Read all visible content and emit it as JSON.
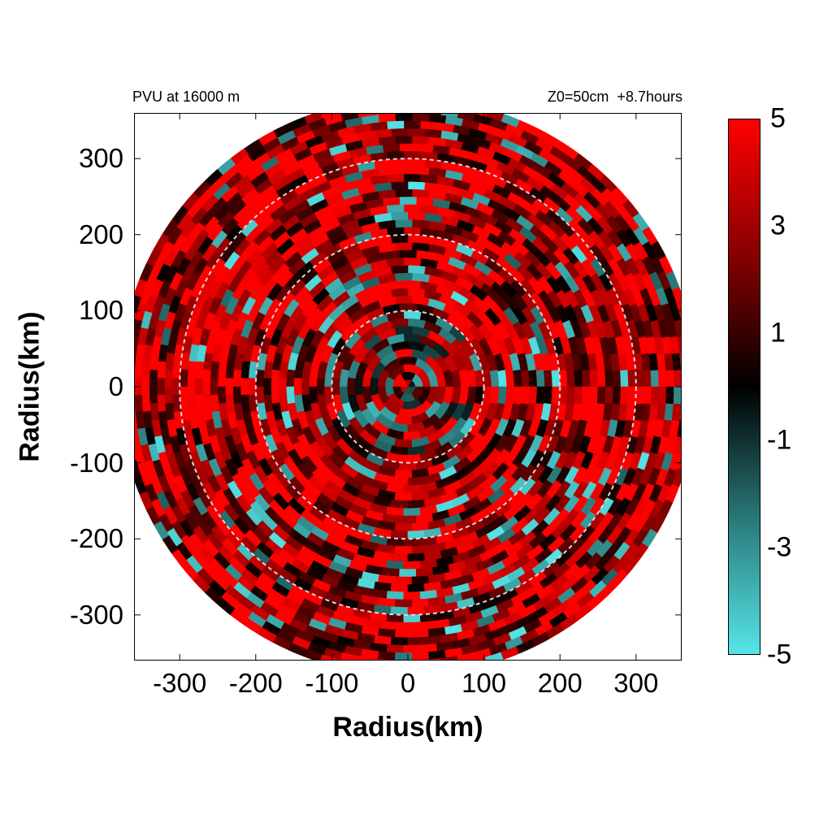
{
  "header": {
    "left_title": "PVU at 16000 m",
    "right_title": "Z0=50cm  +8.7hours"
  },
  "colors": {
    "high": "#ff0000",
    "mid_high": "#7a0000",
    "zero": "#000000",
    "mid_low": "#2a7a7a",
    "low": "#55e5e8",
    "ring": "#d9d9d9"
  },
  "chart_data": {
    "type": "heatmap",
    "title": "PVU at 16000 m",
    "subtitle": "Z0=50cm  +8.7hours",
    "xlabel": "Radius(km)",
    "ylabel": "Radius(km)",
    "xlim": [
      -360,
      360
    ],
    "ylim": [
      -360,
      360
    ],
    "x_ticks": [
      -300,
      -200,
      -100,
      0,
      100,
      200,
      300
    ],
    "y_ticks": [
      300,
      200,
      100,
      0,
      -100,
      -200,
      -300
    ],
    "domain_radius_km": 380,
    "reference_circles_km": [
      100,
      200,
      300
    ],
    "colorbar": {
      "min": -5,
      "max": 5,
      "tick_labels": [
        "5",
        "3",
        "1",
        "-1",
        "-3",
        "-5"
      ]
    }
  }
}
